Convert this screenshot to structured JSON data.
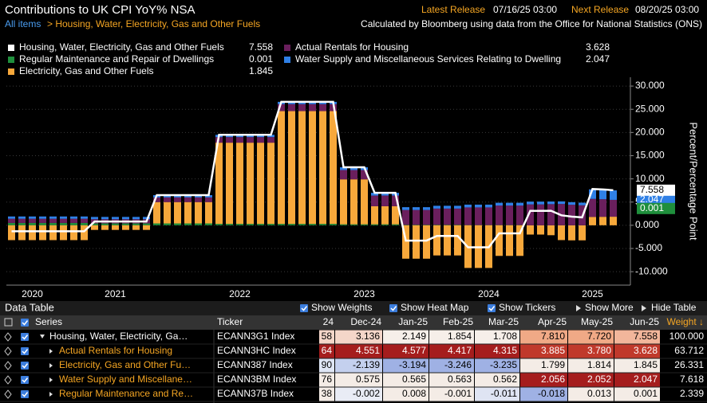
{
  "header": {
    "title": "Contributions to UK CPI YoY% NSA",
    "breadcrumb_root": "All items",
    "breadcrumb_item": "> Housing, Water, Electricity, Gas and Other Fuels",
    "latest_label": "Latest Release",
    "latest_value": "07/16/25 03:00",
    "next_label": "Next Release",
    "next_value": "08/20/25 03:00",
    "source": "Calculated by Bloomberg using data from the Office for National Statistics (ONS)"
  },
  "chart_data": {
    "type": "bar",
    "stacked": true,
    "y_label": "Percent/Percentage Point",
    "grid": true,
    "categories": [
      null,
      null,
      "2020",
      null,
      null,
      null,
      null,
      null,
      null,
      null,
      "2021",
      null,
      null,
      null,
      null,
      null,
      null,
      null,
      null,
      null,
      null,
      null,
      "2022",
      null,
      null,
      null,
      null,
      null,
      null,
      null,
      null,
      null,
      null,
      null,
      "2023",
      null,
      null,
      null,
      null,
      null,
      null,
      null,
      null,
      null,
      null,
      null,
      "2024",
      null,
      null,
      null,
      null,
      null,
      null,
      null,
      null,
      null,
      "2025",
      null,
      null
    ],
    "ylim": [
      -12.9,
      31.9
    ],
    "yticks": [
      {
        "value": 30,
        "label": "30.000"
      },
      {
        "value": 25,
        "label": "25.000"
      },
      {
        "value": 20,
        "label": "20.000"
      },
      {
        "value": 15,
        "label": "15.000"
      },
      {
        "value": 10,
        "label": "10.000"
      },
      {
        "value": 5,
        "label": "5.000"
      },
      {
        "value": 0,
        "label": "0.000"
      },
      {
        "value": -5,
        "label": "-5.000"
      },
      {
        "value": -10,
        "label": "-10.000"
      }
    ],
    "series": [
      {
        "name": "Housing, Water, Electricity, Gas and Other Fuels",
        "color": "#ffffff",
        "type": "line",
        "values": [
          -1.3,
          -1.3,
          -1.3,
          -1.3,
          -1.3,
          -1.3,
          -1.3,
          -1.3,
          0.8,
          0.8,
          0.8,
          0.8,
          0.8,
          0.8,
          6.5,
          6.5,
          6.5,
          6.5,
          6.5,
          6.5,
          19.5,
          19.5,
          19.5,
          19.5,
          19.5,
          19.5,
          26.6,
          26.6,
          26.6,
          26.6,
          26.6,
          26.6,
          12.5,
          12.5,
          12.5,
          7.0,
          7.0,
          7.0,
          -3.3,
          -3.3,
          -3.3,
          -2.3,
          -2.3,
          -2.3,
          -4.75,
          -4.75,
          -4.75,
          -1.75,
          -1.75,
          -1.75,
          3.1,
          3.1,
          3.136,
          2.149,
          1.854,
          1.708,
          7.81,
          7.72,
          7.558
        ]
      },
      {
        "name": "Regular Maintenance and Repair of Dwellings",
        "color": "#1f8f3c",
        "type": "bar",
        "values": [
          0.5,
          0.5,
          0.5,
          0.5,
          0.5,
          0.5,
          0.5,
          0.5,
          0.4,
          0.4,
          0.4,
          0.4,
          0.4,
          0.4,
          0.4,
          0.4,
          0.4,
          0.4,
          0.4,
          0.4,
          0.3,
          0.3,
          0.3,
          0.3,
          0.3,
          0.3,
          0.3,
          0.3,
          0.3,
          0.3,
          0.3,
          0.3,
          0.2,
          0.2,
          0.2,
          0.2,
          0.2,
          0.2,
          0.1,
          0.1,
          0.1,
          0.1,
          0.1,
          0.1,
          0.05,
          0.05,
          0.05,
          0.05,
          0.05,
          0.05,
          0,
          0,
          -0.002,
          0.008,
          -0.001,
          -0.011,
          -0.018,
          0.013,
          0.001
        ]
      },
      {
        "name": "Electricity, Gas and Other Fuels",
        "color": "#f7a83b",
        "type": "bar",
        "values": [
          -3.2,
          -3.2,
          -3.2,
          -3.2,
          -3.2,
          -3.2,
          -3.2,
          -3.2,
          -1.0,
          -1.0,
          -1.0,
          -1.0,
          -1.0,
          -1.0,
          4.6,
          4.6,
          4.6,
          4.6,
          4.6,
          4.6,
          17.5,
          17.5,
          17.5,
          17.5,
          17.5,
          17.5,
          24.3,
          24.3,
          24.3,
          24.3,
          24.3,
          24.3,
          9.7,
          9.7,
          9.7,
          3.9,
          3.9,
          3.9,
          -7.2,
          -7.2,
          -7.2,
          -6.5,
          -6.5,
          -6.5,
          -9.2,
          -9.2,
          -9.2,
          -6.6,
          -6.6,
          -6.6,
          -2.0,
          -2.0,
          -2.139,
          -3.194,
          -3.246,
          -3.235,
          1.799,
          1.814,
          1.845
        ]
      },
      {
        "name": "Actual Rentals for Housing",
        "color": "#6a1f5d",
        "type": "bar",
        "values": [
          0.9,
          0.9,
          0.9,
          0.9,
          0.9,
          0.9,
          0.9,
          0.9,
          0.9,
          0.9,
          0.9,
          0.9,
          0.9,
          0.9,
          1.0,
          1.0,
          1.0,
          1.0,
          1.0,
          1.0,
          1.2,
          1.2,
          1.2,
          1.2,
          1.2,
          1.2,
          1.5,
          1.5,
          1.5,
          1.5,
          1.5,
          1.5,
          2.0,
          2.0,
          2.0,
          2.3,
          2.3,
          2.3,
          3.2,
          3.2,
          3.2,
          3.5,
          3.5,
          3.5,
          3.8,
          3.8,
          3.8,
          4.2,
          4.2,
          4.2,
          4.5,
          4.5,
          4.551,
          4.577,
          4.417,
          4.315,
          3.885,
          3.78,
          3.628
        ]
      },
      {
        "name": "Water Supply and Miscellaneous Services Relating to Dwelling",
        "color": "#2f80e6",
        "type": "bar",
        "values": [
          0.5,
          0.5,
          0.5,
          0.5,
          0.5,
          0.5,
          0.5,
          0.5,
          0.5,
          0.5,
          0.5,
          0.5,
          0.5,
          0.5,
          0.5,
          0.5,
          0.5,
          0.5,
          0.5,
          0.5,
          0.5,
          0.5,
          0.5,
          0.5,
          0.5,
          0.5,
          0.5,
          0.5,
          0.5,
          0.5,
          0.5,
          0.5,
          0.6,
          0.6,
          0.6,
          0.6,
          0.6,
          0.6,
          0.6,
          0.6,
          0.6,
          0.6,
          0.6,
          0.6,
          0.6,
          0.6,
          0.6,
          0.6,
          0.6,
          0.6,
          0.6,
          0.6,
          0.575,
          0.565,
          0.563,
          0.562,
          2.056,
          2.052,
          2.047
        ]
      }
    ]
  },
  "table": {
    "title": "Data Table",
    "toggles": [
      "Show Weights",
      "Show Heat Map",
      "Show Tickers"
    ],
    "show_more": "Show More",
    "hide": "Hide Table",
    "columns": [
      "Series",
      "Ticker",
      "24",
      "Dec-24",
      "Jan-25",
      "Feb-25",
      "Mar-25",
      "Apr-25",
      "May-25",
      "Jun-25",
      "Weight ↓"
    ],
    "rows": [
      {
        "series": "Housing, Water, Electricity, Ga…",
        "ticker": "ECANN3G1 Index",
        "cells": [
          "58",
          "3.136",
          "2.149",
          "1.854",
          "1.708",
          "7.810",
          "7.720",
          "7.558"
        ],
        "weight": "100.000",
        "name_color": "#ffffff",
        "heat": [
          "#f4d6c9",
          "#f4d6c9",
          "#f6efe9",
          "#f6efe9",
          "#f6efe9",
          "#f0a986",
          "#f0a986",
          "#f2b69b"
        ]
      },
      {
        "series": "Actual Rentals for Housing",
        "ticker": "ECANN3HC Index",
        "cells": [
          "64",
          "4.551",
          "4.577",
          "4.417",
          "4.315",
          "3.885",
          "3.780",
          "3.628"
        ],
        "weight": "63.712",
        "name_color": "#f5a623",
        "heat": [
          "#a51d1d",
          "#a51d1d",
          "#a51d1d",
          "#a51d1d",
          "#a51d1d",
          "#c0392b",
          "#c0392b",
          "#c0392b"
        ]
      },
      {
        "series": "Electricity, Gas and Other Fu…",
        "ticker": "ECANN387 Index",
        "cells": [
          "90",
          "-2.139",
          "-3.194",
          "-3.246",
          "-3.235",
          "1.799",
          "1.814",
          "1.845"
        ],
        "weight": "26.331",
        "name_color": "#f5a623",
        "heat": [
          "#dfe6f5",
          "#c4d0ee",
          "#9fb1e4",
          "#9fb1e4",
          "#9fb1e4",
          "#f4ece6",
          "#f4ece6",
          "#f4ece6"
        ]
      },
      {
        "series": "Water Supply and Miscellane…",
        "ticker": "ECANN3BM Index",
        "cells": [
          "76",
          "0.575",
          "0.565",
          "0.563",
          "0.562",
          "2.056",
          "2.052",
          "2.047"
        ],
        "weight": "7.618",
        "name_color": "#f5a623",
        "heat": [
          "#f4ece6",
          "#f4ece6",
          "#f4ece6",
          "#f4ece6",
          "#f4ece6",
          "#a51d1d",
          "#a51d1d",
          "#a51d1d"
        ]
      },
      {
        "series": "Regular Maintenance and Re…",
        "ticker": "ECANN37B Index",
        "cells": [
          "38",
          "-0.002",
          "0.008",
          "-0.001",
          "-0.011",
          "-0.018",
          "0.013",
          "0.001"
        ],
        "weight": "2.339",
        "name_color": "#f5a623",
        "heat": [
          "#f4ece6",
          "#e9ecf5",
          "#f4ece6",
          "#f4ece6",
          "#dfe4f3",
          "#9fb1e4",
          "#f4ece6",
          "#f4ece6"
        ]
      }
    ]
  }
}
